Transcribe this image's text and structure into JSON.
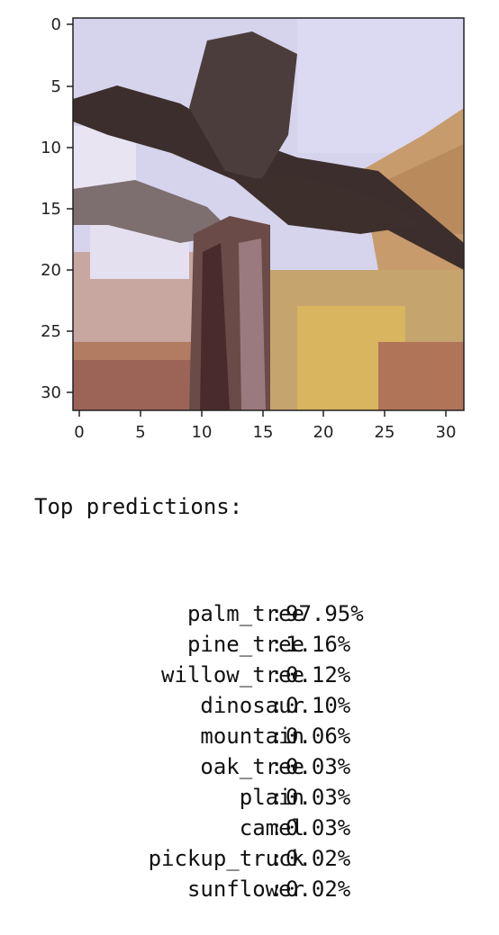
{
  "plot": {
    "x_ticks": [
      "0",
      "5",
      "10",
      "15",
      "20",
      "25",
      "30"
    ],
    "y_ticks": [
      "0",
      "5",
      "10",
      "15",
      "20",
      "25",
      "30"
    ],
    "axis_color": "#222222",
    "image_palette": {
      "sky": "#d8d4ee",
      "trunk": "#6b4b44",
      "frond": "#3a3030",
      "sand": "#c9a070",
      "ground": "#b07a5e",
      "yellow": "#dab55c"
    }
  },
  "output": {
    "heading": "Top predictions:",
    "predictions": [
      {
        "label": "palm_tree",
        "value": "97.95%"
      },
      {
        "label": "pine_tree",
        "value": "1.16%"
      },
      {
        "label": "willow_tree",
        "value": "0.12%"
      },
      {
        "label": "dinosaur",
        "value": "0.10%"
      },
      {
        "label": "mountain",
        "value": "0.06%"
      },
      {
        "label": "oak_tree",
        "value": "0.03%"
      },
      {
        "label": "plain",
        "value": "0.03%"
      },
      {
        "label": "camel",
        "value": "0.03%"
      },
      {
        "label": "pickup_truck",
        "value": "0.02%"
      },
      {
        "label": "sunflower",
        "value": "0.02%"
      }
    ]
  }
}
